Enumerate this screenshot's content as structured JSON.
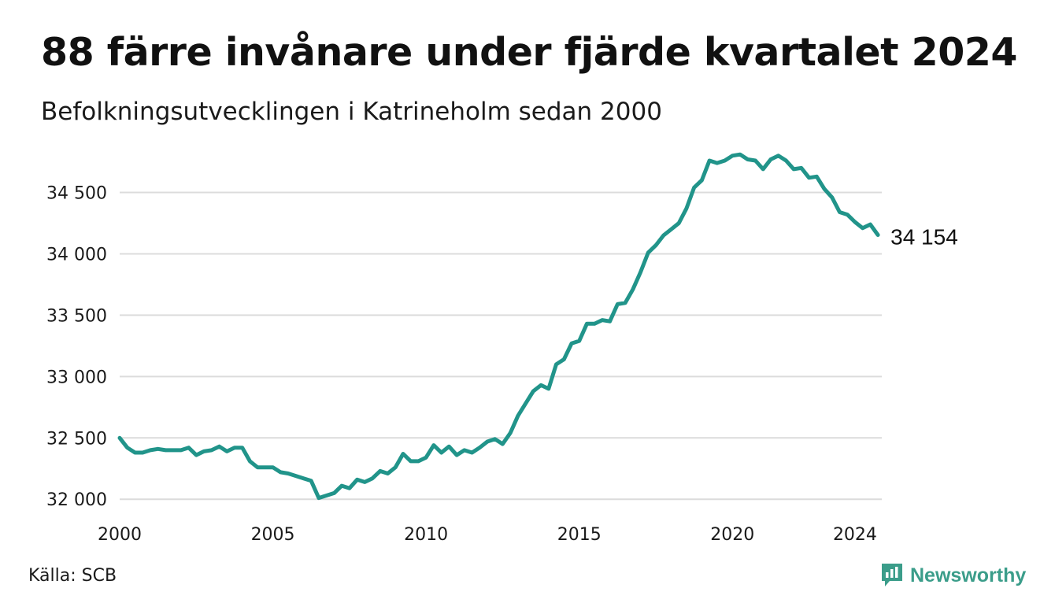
{
  "title": "88 färre invånare under fjärde kvartalet 2024",
  "subtitle": "Befolkningsutvecklingen i Katrineholm sedan 2000",
  "source": "Källa: SCB",
  "brand": {
    "name": "Newsworthy",
    "icon": "newsworthy-logo-icon",
    "color": "#3b9d8a"
  },
  "colors": {
    "line": "#21948a",
    "grid": "#dcdcdc",
    "text": "#111111"
  },
  "chart_data": {
    "type": "line",
    "title": "88 färre invånare under fjärde kvartalet 2024",
    "subtitle": "Befolkningsutvecklingen i Katrineholm sedan 2000",
    "xlabel": "",
    "ylabel": "",
    "x_ticks": [
      "2000",
      "2005",
      "2010",
      "2015",
      "2020",
      "2024"
    ],
    "y_ticks": [
      "32 000",
      "32 500",
      "33 000",
      "33 500",
      "34 000",
      "34 500"
    ],
    "y_tick_values": [
      32000,
      32500,
      33000,
      33500,
      34000,
      34500
    ],
    "xlim": [
      2000.0,
      2024.875
    ],
    "ylim": [
      31950,
      34850
    ],
    "grid": "horizontal",
    "end_label": "34 154",
    "series": [
      {
        "x": [
          2000.0,
          2000.25,
          2000.5,
          2000.75,
          2001.0,
          2001.25,
          2001.5,
          2001.75,
          2002.0,
          2002.25,
          2002.5,
          2002.75,
          2003.0,
          2003.25,
          2003.5,
          2003.75,
          2004.0,
          2004.25,
          2004.5,
          2004.75,
          2005.0,
          2005.25,
          2005.5,
          2005.75,
          2006.0,
          2006.25,
          2006.5,
          2006.75,
          2007.0,
          2007.25,
          2007.5,
          2007.75,
          2008.0,
          2008.25,
          2008.5,
          2008.75,
          2009.0,
          2009.25,
          2009.5,
          2009.75,
          2010.0,
          2010.25,
          2010.5,
          2010.75,
          2011.0,
          2011.25,
          2011.5,
          2011.75,
          2012.0,
          2012.25,
          2012.5,
          2012.75,
          2013.0,
          2013.25,
          2013.5,
          2013.75,
          2014.0,
          2014.25,
          2014.5,
          2014.75,
          2015.0,
          2015.25,
          2015.5,
          2015.75,
          2016.0,
          2016.25,
          2016.5,
          2016.75,
          2017.0,
          2017.25,
          2017.5,
          2017.75,
          2018.0,
          2018.25,
          2018.5,
          2018.75,
          2019.0,
          2019.25,
          2019.5,
          2019.75,
          2020.0,
          2020.25,
          2020.5,
          2020.75,
          2021.0,
          2021.25,
          2021.5,
          2021.75,
          2022.0,
          2022.25,
          2022.5,
          2022.75,
          2023.0,
          2023.25,
          2023.5,
          2023.75,
          2024.0,
          2024.25,
          2024.5,
          2024.75
        ],
        "values": [
          32500,
          32420,
          32380,
          32380,
          32400,
          32410,
          32400,
          32400,
          32400,
          32420,
          32360,
          32390,
          32400,
          32430,
          32390,
          32420,
          32420,
          32310,
          32260,
          32260,
          32260,
          32220,
          32210,
          32190,
          32170,
          32150,
          32010,
          32030,
          32050,
          32110,
          32090,
          32160,
          32140,
          32170,
          32230,
          32210,
          32260,
          32370,
          32310,
          32310,
          32340,
          32440,
          32380,
          32430,
          32360,
          32400,
          32380,
          32420,
          32470,
          32490,
          32450,
          32540,
          32680,
          32780,
          32880,
          32930,
          32900,
          33100,
          33140,
          33270,
          33290,
          33430,
          33430,
          33460,
          33450,
          33590,
          33600,
          33710,
          33850,
          34010,
          34070,
          34150,
          34200,
          34250,
          34370,
          34540,
          34600,
          34760,
          34740,
          34760,
          34800,
          34810,
          34770,
          34760,
          34690,
          34770,
          34800,
          34760,
          34690,
          34700,
          34620,
          34630,
          34530,
          34460,
          34340,
          34320,
          34260,
          34210,
          34240,
          34154
        ]
      }
    ]
  }
}
